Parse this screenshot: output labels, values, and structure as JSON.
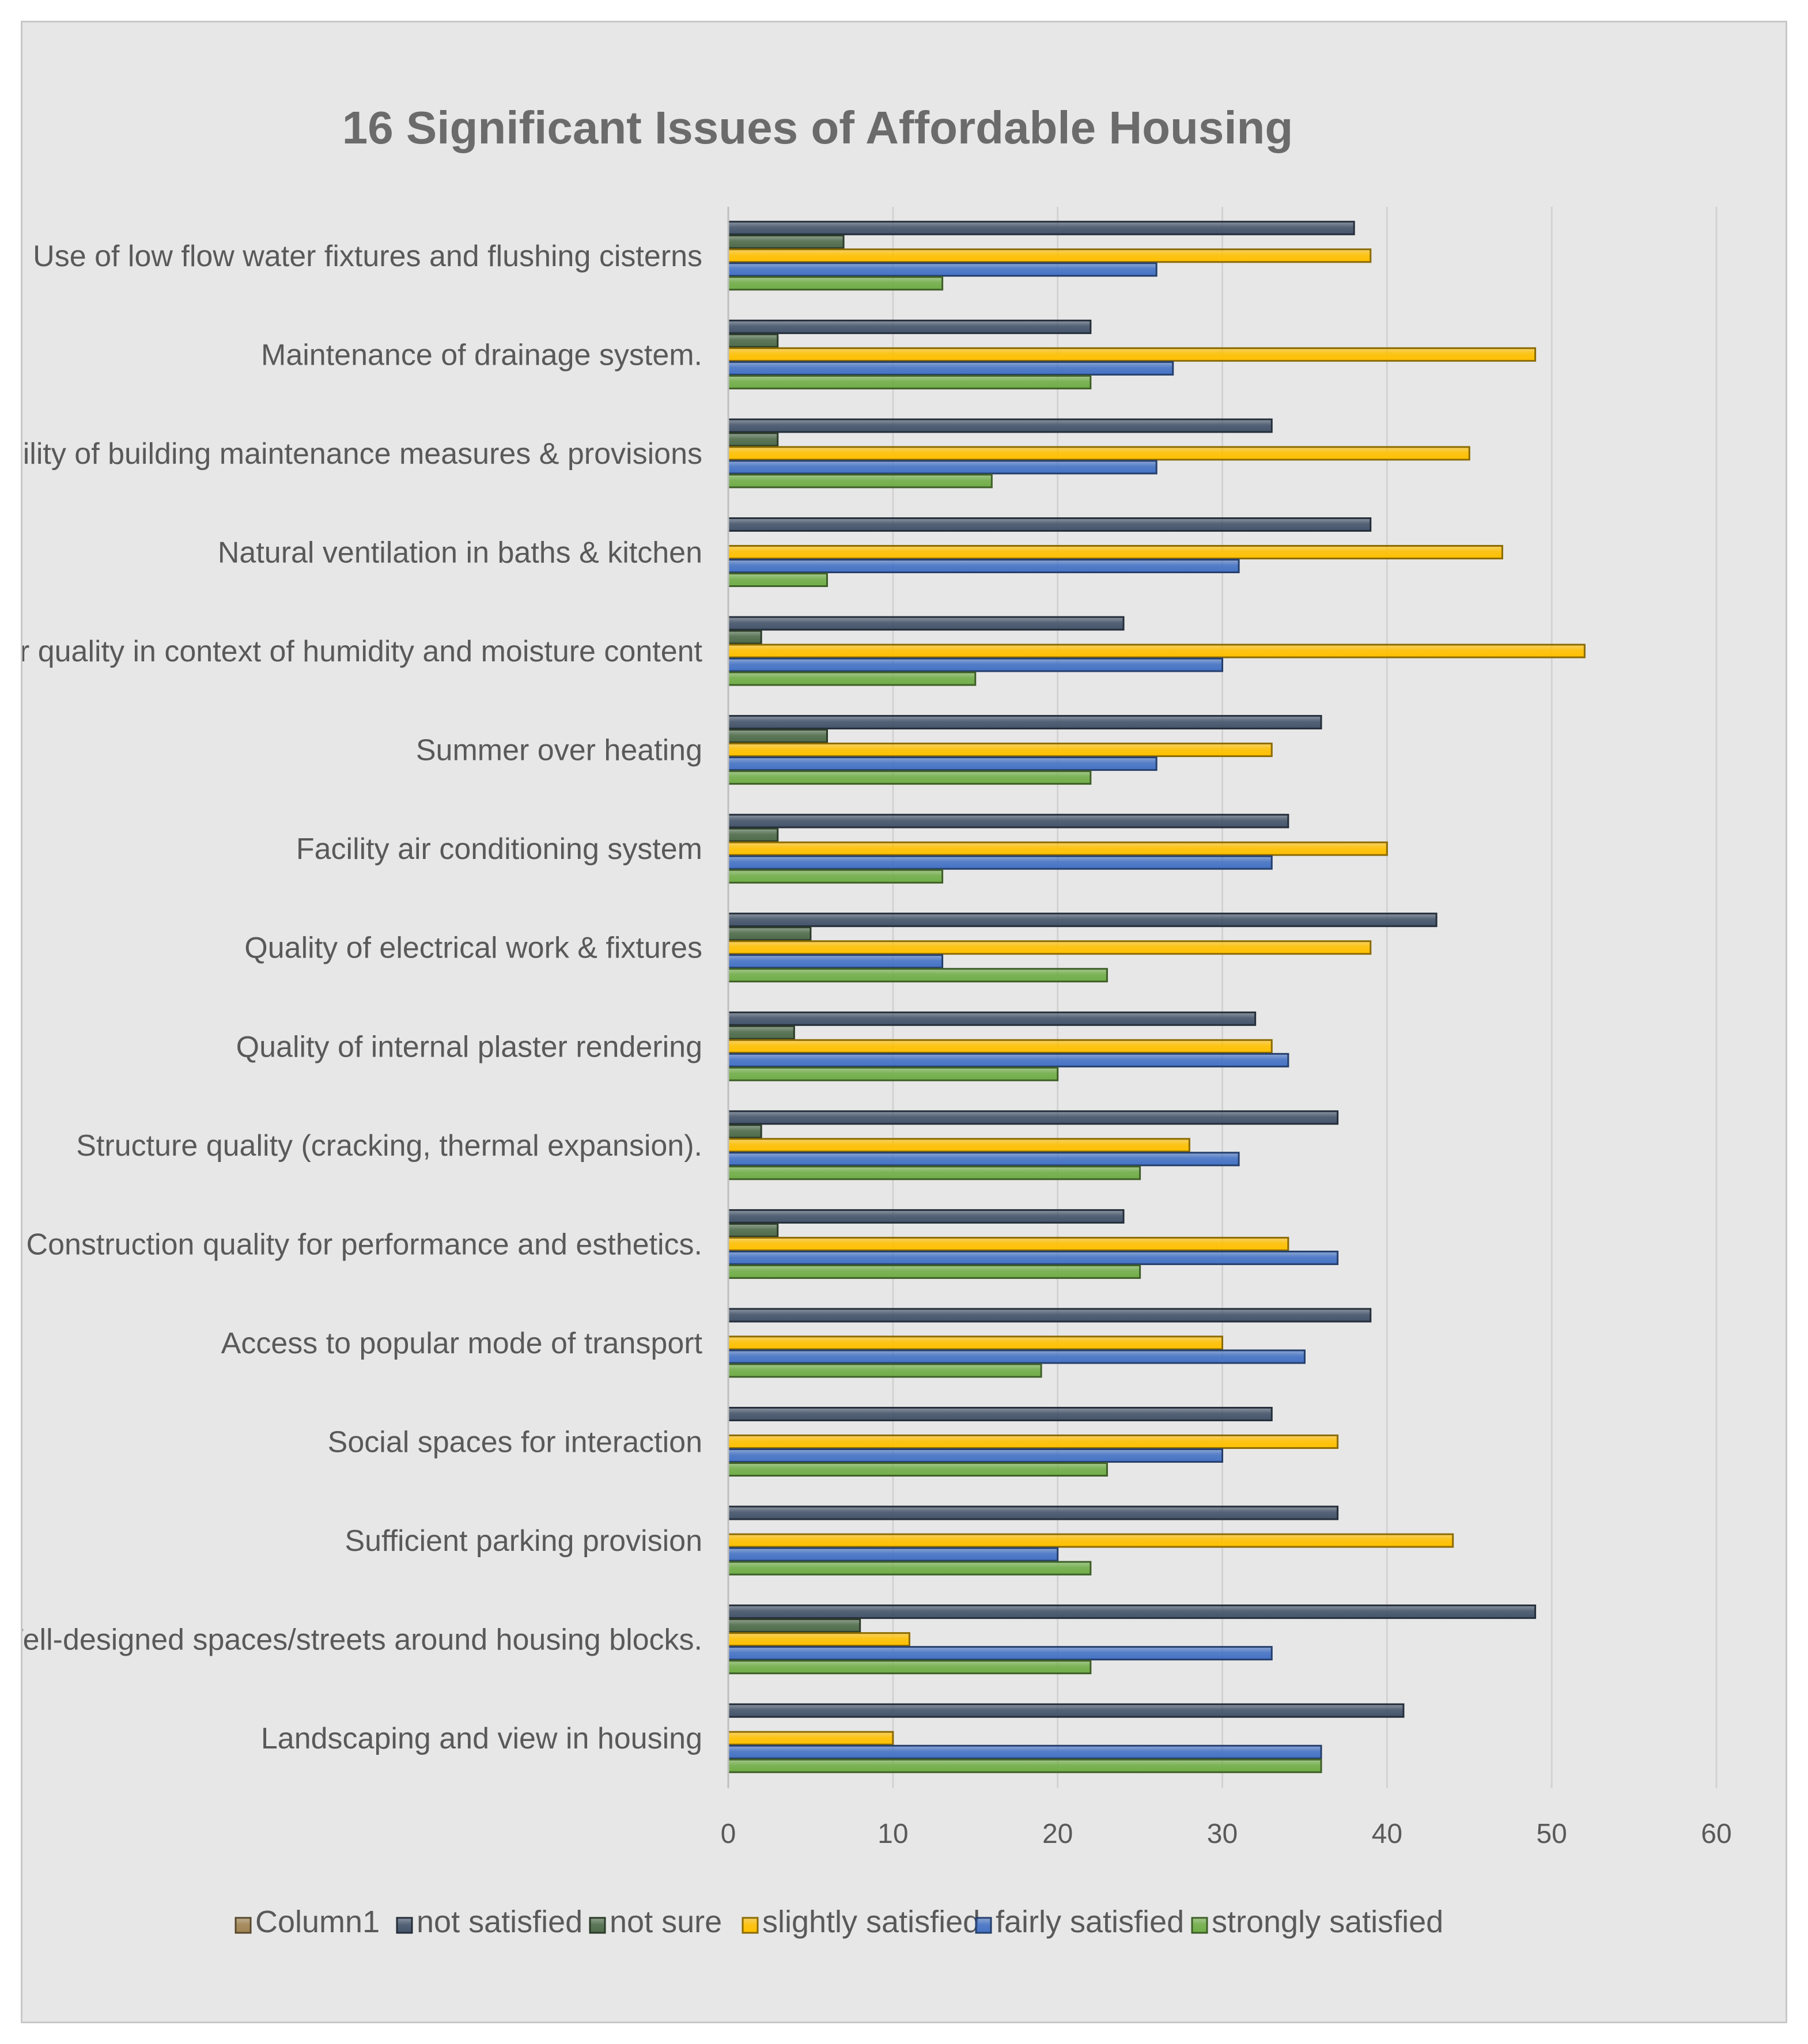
{
  "chart_data": {
    "type": "bar",
    "orientation": "horizontal",
    "title": "16 Significant  Issues of Affordable Housing",
    "xlabel": "",
    "ylabel": "",
    "xlim": [
      0,
      60
    ],
    "xticks": [
      0,
      10,
      20,
      30,
      40,
      50,
      60
    ],
    "grid": true,
    "legend_position": "bottom",
    "categories": [
      "Use of low flow water fixtures and flushing cisterns",
      "Maintenance of drainage system.",
      "Availability of building maintenance measures & provisions",
      "Natural ventilation in  baths & kitchen",
      "Air quality in context of humidity and moisture content",
      "Summer over heating",
      "Facility  air conditioning system",
      "Quality of electrical work & fixtures",
      "Quality of internal plaster rendering",
      "Structure quality (cracking, thermal expansion).",
      "Construction quality for performance and esthetics.",
      "Access to popular mode of transport",
      "Social spaces for interaction",
      "Sufficient parking provision",
      "Well-designed spaces/streets around housing blocks.",
      "Landscaping and view in housing"
    ],
    "series": [
      {
        "name": "Column1",
        "color": "#a08352",
        "values": [
          0,
          0,
          0,
          0,
          0,
          0,
          0,
          0,
          0,
          0,
          0,
          0,
          0,
          0,
          0,
          0
        ]
      },
      {
        "name": "not satisfied",
        "color": "#44546a",
        "values": [
          38,
          22,
          33,
          39,
          24,
          36,
          34,
          43,
          32,
          37,
          24,
          39,
          33,
          37,
          49,
          41
        ]
      },
      {
        "name": "not sure",
        "color": "#4e6b4a",
        "values": [
          7,
          3,
          3,
          0,
          2,
          6,
          3,
          5,
          4,
          2,
          3,
          0,
          0,
          0,
          8,
          0
        ]
      },
      {
        "name": "slightly satisfied",
        "color": "#ffc000",
        "values": [
          39,
          49,
          45,
          47,
          52,
          33,
          40,
          39,
          33,
          28,
          34,
          30,
          37,
          44,
          11,
          10
        ]
      },
      {
        "name": "fairly satisfied",
        "color": "#4472c4",
        "values": [
          26,
          27,
          26,
          31,
          30,
          26,
          33,
          13,
          34,
          31,
          37,
          35,
          30,
          20,
          33,
          36
        ]
      },
      {
        "name": "strongly satisfied",
        "color": "#70ad47",
        "values": [
          13,
          22,
          16,
          6,
          15,
          22,
          13,
          23,
          20,
          25,
          25,
          19,
          23,
          22,
          22,
          36
        ]
      }
    ]
  }
}
